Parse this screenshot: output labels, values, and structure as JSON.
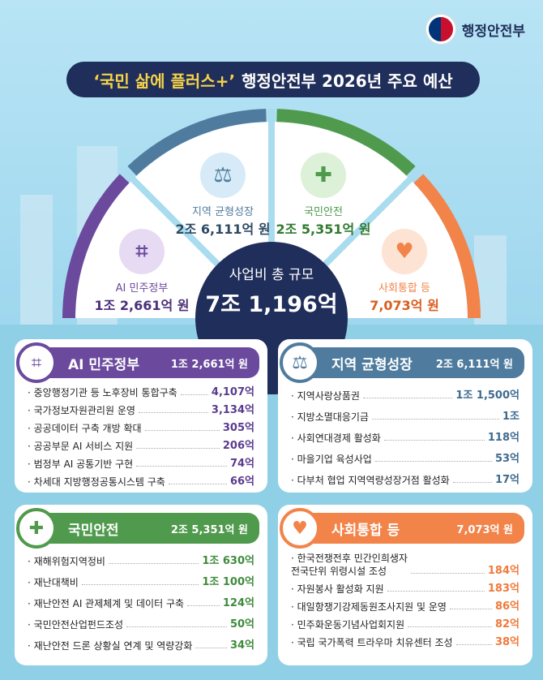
{
  "logo": {
    "text": "행정안전부"
  },
  "title": {
    "highlight": "‘국민 삶에 플러스+’",
    "rest": "행정안전부 2026년 주요 예산"
  },
  "center": {
    "label": "사업비 총 규모",
    "total": "7조 1,196억"
  },
  "colors": {
    "purple": "#6b4a9e",
    "blue": "#4f7c9e",
    "green": "#4f9a4c",
    "orange": "#f2844a",
    "navy": "#1f2e5a"
  },
  "segments": [
    {
      "name": "AI 민주정부",
      "amount": "1조 2,661억 원",
      "icon": "chip-icon"
    },
    {
      "name": "지역 균형성장",
      "amount": "2조 6,111억 원",
      "icon": "scale-icon"
    },
    {
      "name": "국민안전",
      "amount": "2조 5,351억 원",
      "icon": "hands-drop-icon"
    },
    {
      "name": "사회통합 등",
      "amount": "7,073억 원",
      "icon": "heart-hand-icon"
    }
  ],
  "cards": [
    {
      "title": "AI 민주정부",
      "total": "1조 2,661억 원",
      "items": [
        {
          "name": "중앙행정기관 등 노후장비 통합구축",
          "value": "4,107억"
        },
        {
          "name": "국가정보자원관리원 운영",
          "value": "3,134억"
        },
        {
          "name": "공공데이터 구축 개방 확대",
          "value": "305억"
        },
        {
          "name": "공공부문 AI 서비스 지원",
          "value": "206억"
        },
        {
          "name": "범정부 AI 공통기반 구현",
          "value": "74억"
        },
        {
          "name": "차세대 지방행정공통시스템 구축",
          "value": "66억"
        }
      ]
    },
    {
      "title": "지역 균형성장",
      "total": "2조 6,111억 원",
      "items": [
        {
          "name": "지역사랑상품권",
          "value": "1조 1,500억"
        },
        {
          "name": "지방소멸대응기금",
          "value": "1조"
        },
        {
          "name": "사회연대경제 활성화",
          "value": "118억"
        },
        {
          "name": "마을기업 육성사업",
          "value": "53억"
        },
        {
          "name": "다부처 협업 지역역량성장거점 활성화",
          "value": "17억"
        }
      ]
    },
    {
      "title": "국민안전",
      "total": "2조 5,351억 원",
      "items": [
        {
          "name": "재해위험지역정비",
          "value": "1조 630억"
        },
        {
          "name": "재난대책비",
          "value": "1조 100억"
        },
        {
          "name": "재난안전 AI 관제체계 및 데이터 구축",
          "value": "124억"
        },
        {
          "name": "국민안전산업펀드조성",
          "value": "50억"
        },
        {
          "name": "재난안전 드론 상황실 연계 및 역량강화",
          "value": "34억"
        }
      ]
    },
    {
      "title": "사회통합 등",
      "total": "7,073억 원",
      "items": [
        {
          "name": "한국전쟁전후 민간인희생자\n전국단위 위령시설 조성",
          "value": "184억"
        },
        {
          "name": "자원봉사 활성화 지원",
          "value": "183억"
        },
        {
          "name": "대일항쟁기강제동원조사지원 및 운영",
          "value": "86억"
        },
        {
          "name": "민주화운동기념사업회지원",
          "value": "82억"
        },
        {
          "name": "국립 국가폭력 트라우마 치유센터 조성",
          "value": "38억"
        }
      ]
    }
  ]
}
